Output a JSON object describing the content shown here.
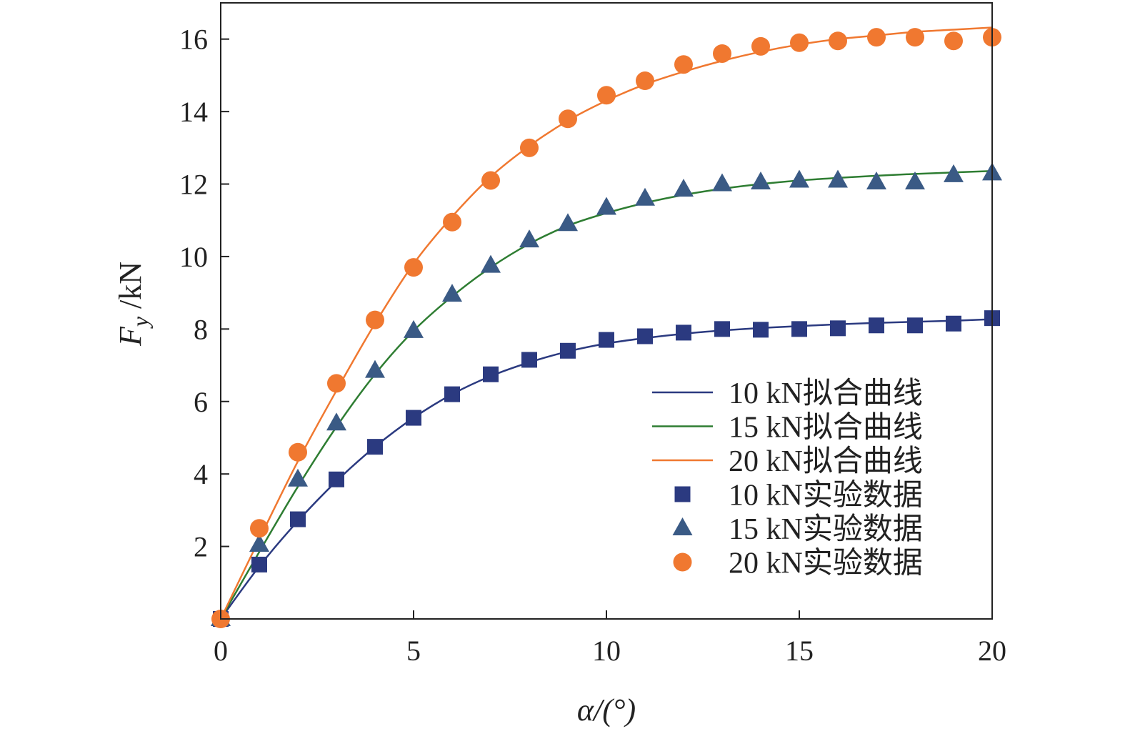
{
  "chart_data": {
    "type": "line",
    "xlabel": "α/(°)",
    "ylabel_main": "F",
    "ylabel_sub": "y",
    "ylabel_unit": " /kN",
    "xlim": [
      0,
      20
    ],
    "ylim": [
      0,
      17
    ],
    "xticks": [
      "0",
      "5",
      "10",
      "15",
      "20"
    ],
    "yticks": [
      "2",
      "4",
      "6",
      "8",
      "10",
      "12",
      "14",
      "16"
    ],
    "grid": false,
    "legend_position": "lower-right",
    "fit_series": [
      {
        "name": "10 kN拟合曲线",
        "color": "#2b3a80",
        "x": [
          0,
          1,
          2,
          3,
          4,
          5,
          6,
          7,
          8,
          9,
          10,
          11,
          12,
          13,
          14,
          15,
          16,
          17,
          18,
          19,
          20
        ],
        "y": [
          0,
          1.45,
          2.7,
          3.8,
          4.75,
          5.55,
          6.2,
          6.7,
          7.08,
          7.38,
          7.6,
          7.75,
          7.87,
          7.96,
          8.03,
          8.08,
          8.13,
          8.17,
          8.2,
          8.23,
          8.27
        ]
      },
      {
        "name": "15 kN拟合曲线",
        "color": "#2e7d32",
        "x": [
          0,
          1,
          2,
          3,
          4,
          5,
          6,
          7,
          8,
          9,
          10,
          11,
          12,
          13,
          14,
          15,
          16,
          17,
          18,
          19,
          20
        ],
        "y": [
          0,
          1.85,
          3.65,
          5.3,
          6.75,
          7.95,
          8.9,
          9.7,
          10.35,
          10.85,
          11.2,
          11.48,
          11.7,
          11.87,
          12.0,
          12.1,
          12.17,
          12.23,
          12.28,
          12.32,
          12.36
        ]
      },
      {
        "name": "20 kN拟合曲线",
        "color": "#f07830",
        "x": [
          0,
          1,
          2,
          3,
          4,
          5,
          6,
          7,
          8,
          9,
          10,
          11,
          12,
          13,
          14,
          15,
          16,
          17,
          18,
          19,
          20
        ],
        "y": [
          0,
          2.2,
          4.35,
          6.3,
          8.15,
          9.8,
          11.1,
          12.2,
          13.05,
          13.75,
          14.3,
          14.75,
          15.1,
          15.4,
          15.65,
          15.85,
          16.0,
          16.1,
          16.2,
          16.26,
          16.32
        ]
      }
    ],
    "data_series": [
      {
        "name": "10 kN实验数据",
        "color": "#2b3a80",
        "marker": "square",
        "x": [
          0,
          1,
          2,
          3,
          4,
          5,
          6,
          7,
          8,
          9,
          10,
          11,
          12,
          13,
          14,
          15,
          16,
          17,
          18,
          19,
          20
        ],
        "y": [
          0,
          1.5,
          2.75,
          3.85,
          4.75,
          5.55,
          6.2,
          6.75,
          7.15,
          7.4,
          7.7,
          7.8,
          7.9,
          8.0,
          7.98,
          8.0,
          8.02,
          8.1,
          8.1,
          8.15,
          8.3
        ]
      },
      {
        "name": "15 kN实验数据",
        "color": "#3a5a85",
        "marker": "triangle",
        "x": [
          0,
          1,
          2,
          3,
          4,
          5,
          6,
          7,
          8,
          9,
          10,
          11,
          12,
          13,
          14,
          15,
          16,
          17,
          18,
          19,
          20
        ],
        "y": [
          0,
          2.05,
          3.85,
          5.4,
          6.85,
          7.95,
          8.95,
          9.75,
          10.45,
          10.9,
          11.35,
          11.6,
          11.85,
          12.0,
          12.05,
          12.1,
          12.1,
          12.05,
          12.05,
          12.25,
          12.3
        ]
      },
      {
        "name": "20 kN实验数据",
        "color": "#f07830",
        "marker": "circle",
        "x": [
          0,
          1,
          2,
          3,
          4,
          5,
          6,
          7,
          8,
          9,
          10,
          11,
          12,
          13,
          14,
          15,
          16,
          17,
          18,
          19,
          20
        ],
        "y": [
          0,
          2.5,
          4.6,
          6.5,
          8.25,
          9.7,
          10.95,
          12.1,
          13.0,
          13.8,
          14.45,
          14.85,
          15.3,
          15.6,
          15.8,
          15.9,
          15.95,
          16.05,
          16.05,
          15.95,
          16.05
        ]
      }
    ]
  }
}
